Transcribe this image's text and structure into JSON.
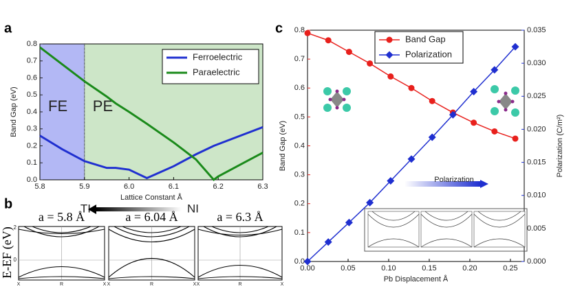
{
  "chart_data": [
    {
      "type": "line",
      "panel_label": "a",
      "xlabel": "Lattice Constant Å",
      "ylabel": "Band Gap (eV)",
      "x": [
        5.8,
        5.85,
        5.9,
        5.95,
        5.97,
        6.0,
        6.04,
        6.1,
        6.15,
        6.19,
        6.2,
        6.25,
        6.3
      ],
      "series": [
        {
          "name": "Ferroelectric",
          "color": "#1f2fd0",
          "values": [
            0.26,
            0.18,
            0.11,
            0.07,
            0.07,
            0.06,
            0.01,
            0.08,
            0.15,
            0.2,
            0.21,
            0.26,
            0.31
          ]
        },
        {
          "name": "Paraelectric",
          "color": "#1a8a1a",
          "values": [
            0.78,
            0.68,
            0.58,
            0.49,
            0.45,
            0.4,
            0.33,
            0.22,
            0.12,
            0.0,
            0.02,
            0.09,
            0.16
          ]
        }
      ],
      "regions": [
        {
          "label": "FE",
          "range": [
            5.8,
            5.9
          ],
          "color": "#b3b8f5"
        },
        {
          "label": "PE",
          "range": [
            5.9,
            6.3
          ],
          "color": "#cde6c8"
        }
      ],
      "xlim": [
        5.8,
        6.3
      ],
      "xticks": [
        5.8,
        5.9,
        {
          "value": 6.0,
          "label": "6.0"
        },
        6.1,
        6.2,
        6.3
      ],
      "ylim": [
        0,
        0.8
      ],
      "yticks": [
        {
          "value": 0,
          "label": "0.0"
        },
        0.1,
        0.2,
        0.3,
        0.4,
        0.5,
        0.6,
        0.7,
        0.8
      ],
      "legend": "upper right"
    },
    {
      "type": "line",
      "panel_label": "c",
      "xlabel": "Pb Displacement Å",
      "ylabel": "Band Gap (eV)",
      "y2label": "Polarization (C/m²)",
      "x": [
        0,
        0.0256,
        0.0512,
        0.0768,
        0.1024,
        0.128,
        0.1536,
        0.1792,
        0.2048,
        0.2304,
        0.256
      ],
      "series": [
        {
          "name": "Band Gap",
          "color": "#e8201c",
          "marker": "circle",
          "values": [
            0.79,
            0.765,
            0.725,
            0.685,
            0.64,
            0.6,
            0.555,
            0.515,
            0.48,
            0.45,
            0.425
          ]
        },
        {
          "name": "Polarization",
          "color": "#1f2fd0",
          "marker": "diamond",
          "axis": "y2",
          "values": [
            0,
            0.00295,
            0.0059,
            0.0089,
            0.0122,
            0.0155,
            0.0188,
            0.0222,
            0.0257,
            0.029,
            0.0325
          ]
        }
      ],
      "xlim": [
        0,
        0.267
      ],
      "xticks": [
        {
          "value": 0,
          "label": "0.00"
        },
        {
          "value": 0.05,
          "label": "0.05"
        },
        {
          "value": 0.1,
          "label": "0.10"
        },
        {
          "value": 0.15,
          "label": "0.15"
        },
        {
          "value": 0.2,
          "label": "0.20"
        },
        {
          "value": 0.25,
          "label": "0.25"
        }
      ],
      "ylim": [
        0,
        0.8
      ],
      "yticks": [
        {
          "value": 0,
          "label": "0.0"
        },
        0.1,
        0.2,
        0.3,
        0.4,
        0.5,
        0.6,
        0.7,
        0.8
      ],
      "y2lim": [
        0,
        0.035
      ],
      "y2ticks": [
        {
          "value": 0,
          "label": "0.000"
        },
        {
          "value": 0.005,
          "label": "0.005"
        },
        {
          "value": 0.01,
          "label": "0.010"
        },
        {
          "value": 0.015,
          "label": "0.015"
        },
        {
          "value": 0.02,
          "label": "0.020"
        },
        {
          "value": 0.025,
          "label": "0.025"
        },
        {
          "value": 0.03,
          "label": "0.030"
        },
        {
          "value": 0.035,
          "label": "0.035"
        }
      ],
      "inset_label": "Polarization",
      "legend": "upper center"
    }
  ],
  "band_structures": {
    "panel_label": "b",
    "arrow_left": "TI",
    "arrow_right": "NI",
    "ylabel": "E-EF (eV)",
    "titles": [
      "a = 5.8 Å",
      "a = 6.04 Å",
      "a = 6.3 Å"
    ],
    "yticks": [
      "2",
      "0"
    ],
    "kpoints": [
      "X",
      "R",
      "X"
    ]
  }
}
